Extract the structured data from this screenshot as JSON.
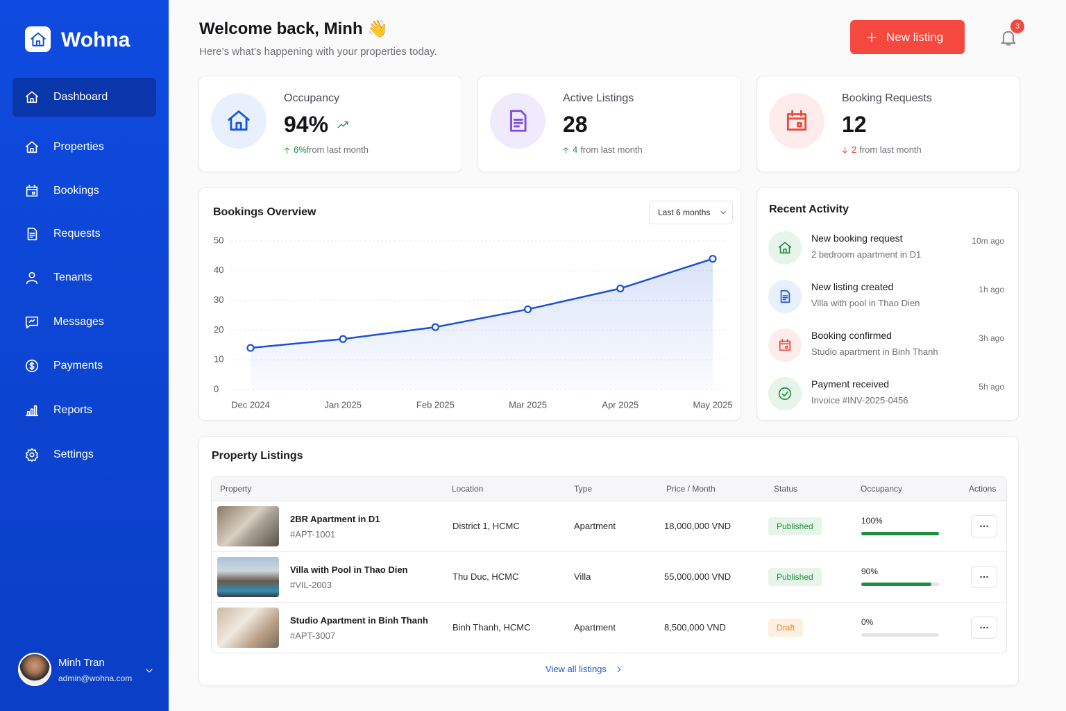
{
  "sidebar": {
    "brand": "Wohna",
    "nav": [
      "Dashboard",
      "Properties",
      "Bookings",
      "Requests",
      "Tenants",
      "Messages",
      "Payments",
      "Reports",
      "Settings"
    ],
    "user": {
      "name": "Minh Tran",
      "email": "admin@wohna.com"
    }
  },
  "header": {
    "title": "Welcome back, Minh 👋",
    "subtitle": "Here’s what’s happening with your properties today.",
    "button": "New listing",
    "notifications": "3"
  },
  "stats": [
    {
      "label": "Occupancy",
      "value": "94%",
      "change": "6%",
      "note": "from last month",
      "direction": "up"
    },
    {
      "label": "Active Listings",
      "value": "28",
      "change": "4",
      "note": "from last month",
      "direction": "up"
    },
    {
      "label": "Booking Requests",
      "value": "12",
      "change": "2",
      "note": "from last month",
      "direction": "down"
    }
  ],
  "chart_data": {
    "type": "line",
    "title": "Bookings Overview",
    "period": "Last 6 months",
    "categories": [
      "Dec 2024",
      "Jan 2025",
      "Feb 2025",
      "Mar 2025",
      "Apr 2025",
      "May 2025"
    ],
    "values": [
      14,
      17,
      21,
      27,
      34,
      44
    ],
    "color": "#1a4fd6",
    "ylim": [
      0,
      50
    ],
    "yticks": [
      0,
      10,
      20,
      30,
      40,
      50
    ],
    "grid": true
  },
  "activity": {
    "title": "Recent Activity",
    "items": [
      {
        "title": "New booking request",
        "subtitle": "2 bedroom apartment in D1",
        "time": "10m ago"
      },
      {
        "title": "New listing created",
        "subtitle": "Villa with pool in Thao Dien",
        "time": "1h ago"
      },
      {
        "title": "Booking confirmed",
        "subtitle": "Studio apartment in Binh Thanh",
        "time": "3h ago"
      },
      {
        "title": "Payment received",
        "subtitle": "Invoice #INV-2025-0456",
        "time": "5h ago"
      }
    ]
  },
  "listings": {
    "title": "Property Listings",
    "columns": [
      "Property",
      "Location",
      "Type",
      "Price / Month",
      "Status",
      "Occupancy",
      "Actions"
    ],
    "rows": [
      {
        "name": "2BR Apartment in D1",
        "id": "#APT-1001",
        "location": "District 1, HCMC",
        "type": "Apartment",
        "price": "18,000,000 VND",
        "status": "Published",
        "occupancy": {
          "value": 100,
          "label": "100%"
        }
      },
      {
        "name": "Villa with Pool in Thao Dien",
        "id": "#VIL-2003",
        "location": "Thu Duc, HCMC",
        "type": "Villa",
        "price": "55,000,000 VND",
        "status": "Published",
        "occupancy": {
          "value": 90,
          "label": "90%"
        }
      },
      {
        "name": "Studio Apartment in Binh Thanh",
        "id": "#APT-3007",
        "location": "Binh Thanh, HCMC",
        "type": "Apartment",
        "price": "8,500,000 VND",
        "status": "Draft",
        "occupancy": {
          "value": 0,
          "label": "0%"
        }
      }
    ],
    "footer": "View all listings"
  }
}
